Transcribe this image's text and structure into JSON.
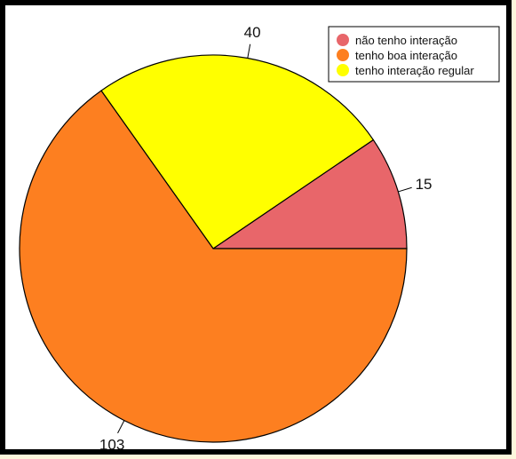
{
  "chart_data": {
    "type": "pie",
    "title": "",
    "slices": [
      {
        "label": "não tenho interação",
        "value": 15,
        "color": "#e8666a"
      },
      {
        "label": "tenho interação regular",
        "value": 40,
        "color": "#ffff00"
      },
      {
        "label": "tenho boa interação",
        "value": 103,
        "color": "#fd7f20"
      }
    ],
    "legend": {
      "placement": "top-right",
      "items": [
        {
          "label": "não tenho interação",
          "color": "#e8666a"
        },
        {
          "label": "tenho boa interação",
          "color": "#fd7f20"
        },
        {
          "label": "tenho interação regular",
          "color": "#ffff00"
        }
      ]
    },
    "start_angle_deg": 0,
    "direction": "counterclockwise"
  },
  "colors": {
    "frame_border": "#000000",
    "plot_background": "#ffffff",
    "page_background": "#fdf6dc"
  }
}
